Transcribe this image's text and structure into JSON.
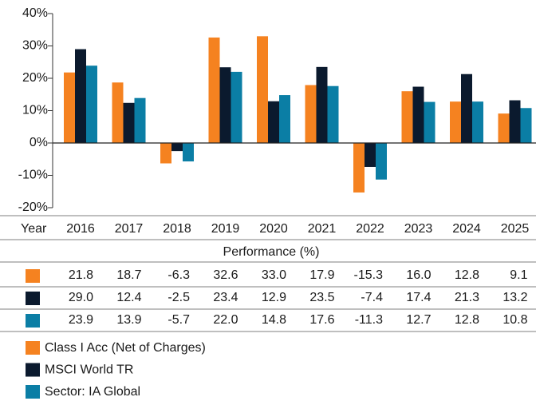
{
  "chart_data": {
    "type": "bar",
    "x_label": "Year",
    "table_title": "Performance (%)",
    "categories": [
      "2016",
      "2017",
      "2018",
      "2019",
      "2020",
      "2021",
      "2022",
      "2023",
      "2024",
      "2025"
    ],
    "series": [
      {
        "name": "Class I Acc (Net of Charges)",
        "color": "#f58220",
        "values": [
          21.8,
          18.7,
          -6.3,
          32.6,
          33.0,
          17.9,
          -15.3,
          16.0,
          12.8,
          9.1
        ],
        "value_labels": [
          "21.8",
          "18.7",
          "-6.3",
          "32.6",
          "33.0",
          "17.9",
          "-15.3",
          "16.0",
          "12.8",
          "9.1"
        ]
      },
      {
        "name": "MSCI World TR",
        "color": "#0b1a2e",
        "values": [
          29.0,
          12.4,
          -2.5,
          23.4,
          12.9,
          23.5,
          -7.4,
          17.4,
          21.3,
          13.2
        ],
        "value_labels": [
          "29.0",
          "12.4",
          "-2.5",
          "23.4",
          "12.9",
          "23.5",
          "-7.4",
          "17.4",
          "21.3",
          "13.2"
        ]
      },
      {
        "name": "Sector: IA Global",
        "color": "#0b7ea5",
        "values": [
          23.9,
          13.9,
          -5.7,
          22.0,
          14.8,
          17.6,
          -11.3,
          12.7,
          12.8,
          10.8
        ],
        "value_labels": [
          "23.9",
          "13.9",
          "-5.7",
          "22.0",
          "14.8",
          "17.6",
          "-11.3",
          "12.7",
          "12.8",
          "10.8"
        ]
      }
    ],
    "ylim": [
      -20,
      40
    ],
    "yticks": [
      {
        "value": 40,
        "label": "40%"
      },
      {
        "value": 30,
        "label": "30%"
      },
      {
        "value": 20,
        "label": "20%"
      },
      {
        "value": 10,
        "label": "10%"
      },
      {
        "value": 0,
        "label": "0%"
      },
      {
        "value": -10,
        "label": "-10%"
      },
      {
        "value": -20,
        "label": "-20%"
      }
    ]
  }
}
